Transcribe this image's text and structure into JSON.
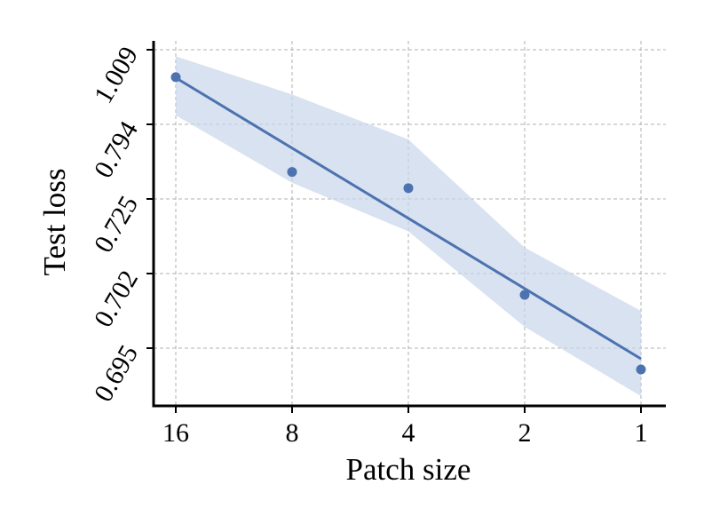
{
  "chart_data": {
    "type": "scatter",
    "xlabel": "Patch size",
    "ylabel": "Test loss",
    "x_ticks": [
      "16",
      "8",
      "4",
      "2",
      "1"
    ],
    "y_ticks": [
      "0.695",
      "0.702",
      "0.725",
      "0.794",
      "1.009"
    ],
    "x_scale": "log2-reversed",
    "y_scale": "transformed",
    "grid": true,
    "legend": "none",
    "series": [
      {
        "x": [
          16,
          8,
          4,
          2,
          1
        ],
        "y": [
          0.93,
          0.75,
          0.735,
          0.7,
          0.693
        ],
        "fit_line": {
          "y_start": 0.928,
          "y_end": 0.694
        },
        "confidence_band": {
          "upper": [
            0.99,
            0.88,
            0.78,
            0.71,
            0.6985
          ],
          "lower": [
            0.82,
            0.74,
            0.715,
            0.697,
            0.6905
          ]
        }
      }
    ],
    "colors": {
      "series": "#4c72b0",
      "band": "#c9d5ea",
      "grid": "#b0b0b0"
    }
  }
}
